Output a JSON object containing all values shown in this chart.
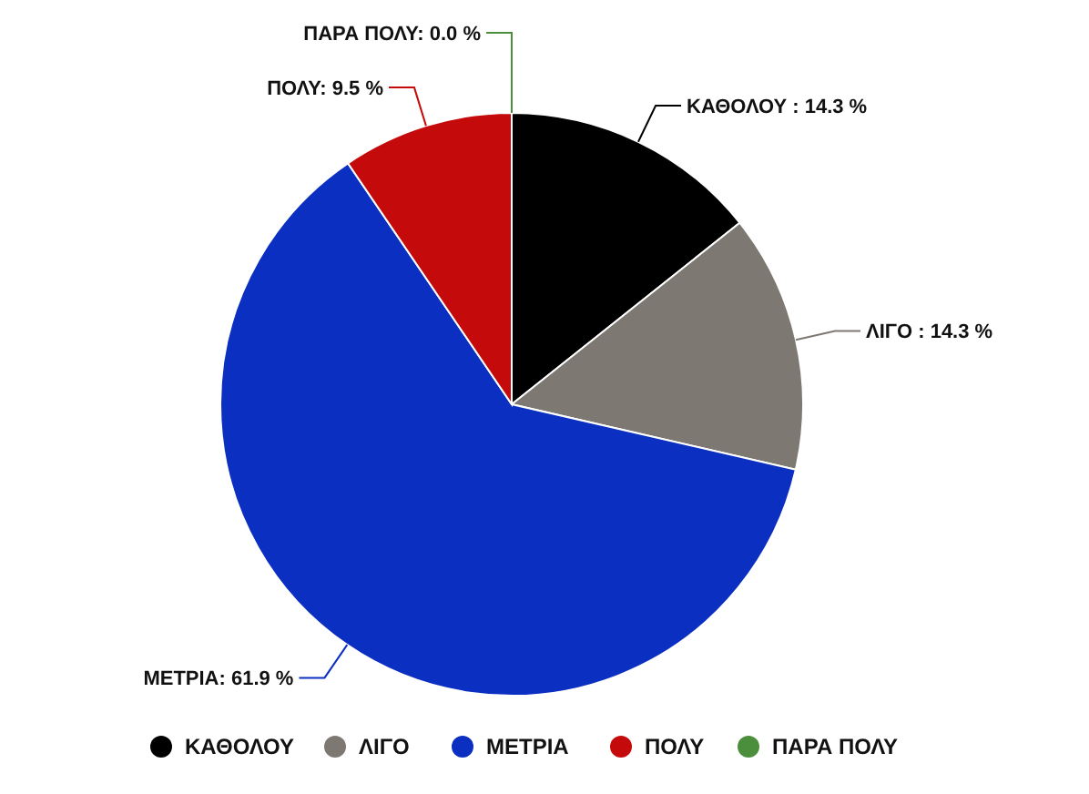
{
  "chart_data": {
    "type": "pie",
    "categories": [
      "ΚΑΘΟΛΟΥ",
      "ΛΙΓΟ",
      "ΜΕΤΡΙΑ",
      "ΠΟΛΥ",
      "ΠΑΡΑ ΠΟΛΥ"
    ],
    "values": [
      14.3,
      14.3,
      61.9,
      9.5,
      0.0
    ],
    "colors": [
      "#000000",
      "#7d7972",
      "#0b2fc0",
      "#c40a0a",
      "#4b8f3c"
    ],
    "value_labels": [
      "ΚΑΘΟΛΟΥ : 14.3 %",
      "ΛΙΓΟ : 14.3 %",
      "ΜΕΤΡΙΑ: 61.9 %",
      "ΠΟΛΥ: 9.5 %",
      "ΠΑΡΑ ΠΟΛΥ: 0.0 %"
    ],
    "legend": "bottom"
  }
}
